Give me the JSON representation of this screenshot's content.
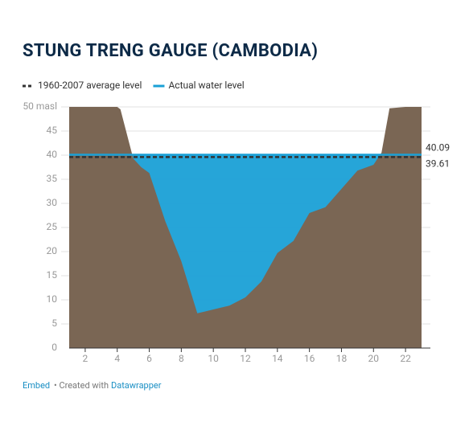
{
  "chart_data": {
    "type": "area",
    "title": "STUNG TRENG GAUGE (CAMBODIA)",
    "x": [
      1,
      2,
      3,
      4,
      4.2,
      5,
      5.5,
      6,
      7,
      8,
      9,
      10,
      11,
      12,
      13,
      14,
      15,
      16,
      17,
      18,
      19,
      20,
      20.5,
      21,
      22,
      23
    ],
    "values": [
      50,
      50,
      50,
      50,
      49.5,
      39.3,
      37.5,
      36.3,
      26.3,
      18,
      7.2,
      8,
      8.8,
      10.5,
      13.8,
      19.7,
      22.2,
      28,
      29.2,
      33,
      36.8,
      38,
      40.5,
      49.7,
      50,
      50
    ],
    "color": "#7a6654",
    "lines": [
      {
        "name": "1960-2007 average level",
        "value": 39.61,
        "color": "#333333",
        "dashed": true
      },
      {
        "name": "Actual water level",
        "value": 40.09,
        "color": "#1aa0d6",
        "dashed": false
      }
    ],
    "xlim": [
      1,
      23
    ],
    "ylim": [
      0,
      50
    ],
    "xticks": [
      2,
      4,
      6,
      8,
      10,
      12,
      14,
      16,
      18,
      20,
      22
    ],
    "yticks": [
      0,
      5,
      10,
      15,
      20,
      25,
      30,
      35,
      40,
      45,
      {
        "value": 50,
        "label": "50 masl"
      }
    ],
    "grid": true
  },
  "footer": {
    "embed": "Embed",
    "created": "• Created with",
    "tool": "Datawrapper"
  }
}
